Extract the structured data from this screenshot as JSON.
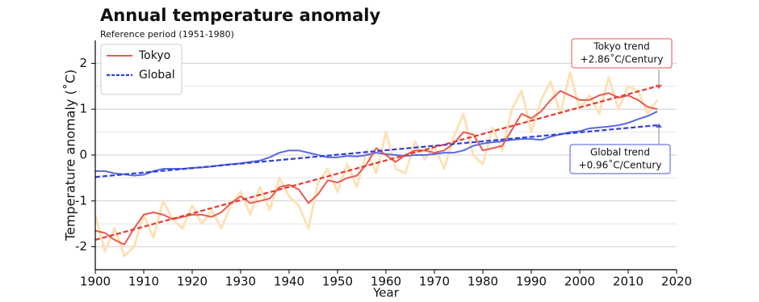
{
  "chart_data": {
    "type": "line",
    "title": "Annual temperature anomaly",
    "subtitle": "Reference period (1951-1980)",
    "x_label": "Year",
    "y_label": "Temperature anomaly (˚C)",
    "xlim": [
      1900,
      2020
    ],
    "xticks": [
      1900,
      1910,
      1920,
      1930,
      1940,
      1950,
      1960,
      1970,
      1980,
      1990,
      2000,
      2010,
      2020
    ],
    "ylim": [
      -2.5,
      2.5
    ],
    "yticks": [
      -2,
      -1,
      0,
      1,
      2
    ],
    "y_minor_grid": [
      -1.5,
      -0.5,
      0.5,
      1.5
    ],
    "grid": true,
    "legend": "upper left",
    "x": [
      1900,
      1902,
      1904,
      1906,
      1908,
      1910,
      1912,
      1914,
      1916,
      1918,
      1920,
      1922,
      1924,
      1926,
      1928,
      1930,
      1932,
      1934,
      1936,
      1938,
      1940,
      1942,
      1944,
      1946,
      1948,
      1950,
      1952,
      1954,
      1956,
      1958,
      1960,
      1962,
      1964,
      1966,
      1968,
      1970,
      1972,
      1974,
      1976,
      1978,
      1980,
      1982,
      1984,
      1986,
      1988,
      1990,
      1992,
      1994,
      1996,
      1998,
      2000,
      2002,
      2004,
      2006,
      2008,
      2010,
      2012,
      2014,
      2016
    ],
    "series": [
      {
        "color": "#fde2b8",
        "width": 3,
        "values": [
          -1.3,
          -2.1,
          -1.6,
          -2.2,
          -2.0,
          -1.3,
          -1.8,
          -1.0,
          -1.4,
          -1.6,
          -1.1,
          -1.5,
          -1.2,
          -1.6,
          -1.1,
          -0.8,
          -1.3,
          -0.7,
          -1.2,
          -0.5,
          -0.9,
          -1.1,
          -1.6,
          -0.6,
          -0.3,
          -0.8,
          -0.2,
          -0.7,
          0.1,
          -0.4,
          0.5,
          -0.3,
          -0.4,
          0.3,
          -0.1,
          0.2,
          -0.3,
          0.4,
          0.9,
          0.0,
          -0.2,
          0.6,
          0.1,
          1.0,
          1.4,
          0.5,
          1.2,
          1.6,
          0.9,
          1.8,
          1.0,
          1.3,
          0.9,
          1.7,
          1.0,
          1.5,
          1.4,
          0.9,
          1.2
        ]
      },
      {
        "color": "#5a6ae0",
        "width": 2,
        "values": [
          -0.35,
          -0.35,
          -0.4,
          -0.42,
          -0.45,
          -0.43,
          -0.35,
          -0.3,
          -0.3,
          -0.3,
          -0.28,
          -0.27,
          -0.25,
          -0.22,
          -0.2,
          -0.18,
          -0.15,
          -0.12,
          -0.05,
          0.05,
          0.1,
          0.1,
          0.05,
          0.0,
          -0.05,
          -0.05,
          -0.02,
          -0.03,
          0.0,
          0.05,
          0.02,
          0.0,
          -0.02,
          0.0,
          0.0,
          0.02,
          0.05,
          0.05,
          0.1,
          0.2,
          0.25,
          0.28,
          0.3,
          0.33,
          0.35,
          0.35,
          0.33,
          0.4,
          0.45,
          0.5,
          0.52,
          0.58,
          0.6,
          0.62,
          0.65,
          0.7,
          0.78,
          0.85,
          0.95
        ]
      },
      {
        "name": "Tokyo",
        "color": "#ea5a50",
        "width": 2,
        "values": [
          -1.65,
          -1.7,
          -1.85,
          -1.95,
          -1.6,
          -1.3,
          -1.25,
          -1.3,
          -1.4,
          -1.35,
          -1.3,
          -1.3,
          -1.35,
          -1.25,
          -1.05,
          -0.9,
          -1.05,
          -1.0,
          -0.95,
          -0.7,
          -0.65,
          -0.75,
          -1.05,
          -0.85,
          -0.55,
          -0.6,
          -0.5,
          -0.45,
          -0.2,
          0.15,
          0.0,
          -0.15,
          0.0,
          0.1,
          0.1,
          0.05,
          0.1,
          0.25,
          0.5,
          0.45,
          0.1,
          0.15,
          0.2,
          0.55,
          0.9,
          0.8,
          0.95,
          1.2,
          1.4,
          1.3,
          1.2,
          1.2,
          1.3,
          1.35,
          1.25,
          1.3,
          1.2,
          1.05,
          1.0
        ]
      },
      {
        "name": "Global",
        "color": "#2f3fd6",
        "width": 2.2,
        "dashed": true,
        "x": [
          1900,
          2016
        ],
        "values": [
          -0.48,
          0.65
        ]
      },
      {
        "color": "#e53a2f",
        "width": 2.2,
        "dashed": true,
        "x": [
          1900,
          2016
        ],
        "values": [
          -1.85,
          1.5
        ]
      }
    ],
    "annotations": [
      {
        "lines": [
          "Tokyo trend",
          "+2.86˚C/Century"
        ],
        "color": "#e8554e"
      },
      {
        "lines": [
          "Global trend",
          "+0.96˚C/Century"
        ],
        "color": "#4a5ad8"
      }
    ]
  }
}
